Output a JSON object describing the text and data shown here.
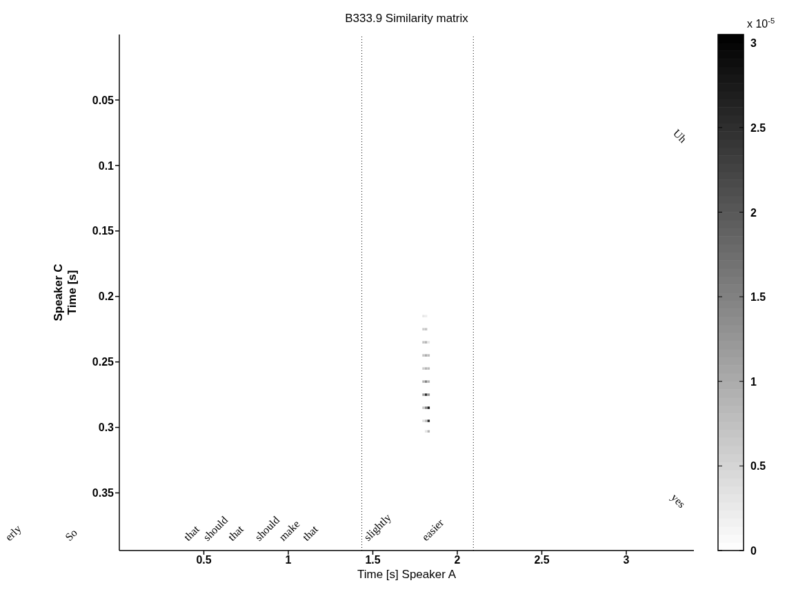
{
  "chart_data": {
    "type": "scatter",
    "title": "B333.9 Similarity matrix",
    "xlabel": "Time [s] Speaker A",
    "ylabel": "Speaker C\nTime [s]",
    "clabel": "x 10$^{-5}$",
    "xlim": [
      0,
      3.4
    ],
    "xticks": [
      0.5,
      1,
      1.5,
      2,
      2.5,
      3
    ],
    "ylim": [
      0.394,
      0
    ],
    "yticks": [
      0.05,
      0.1,
      0.15,
      0.2,
      0.25,
      0.3,
      0.35
    ],
    "clim": [
      0,
      3.05
    ],
    "cticks": [
      0,
      0.5,
      1,
      1.5,
      2,
      2.5,
      3
    ],
    "marker": "square",
    "x": [
      1.8,
      1.8,
      1.8,
      1.8,
      1.8,
      1.8,
      1.8,
      1.8,
      1.8,
      1.815,
      1.815,
      1.815,
      1.815,
      1.815,
      1.815,
      1.815,
      1.815,
      1.815,
      1.815,
      1.83,
      1.83,
      1.83,
      1.83,
      1.83,
      1.83,
      1.83,
      1.83
    ],
    "values": [
      0.215,
      0.225,
      0.235,
      0.245,
      0.255,
      0.265,
      0.275,
      0.285,
      0.295,
      0.215,
      0.225,
      0.235,
      0.245,
      0.255,
      0.265,
      0.275,
      0.285,
      0.295,
      0.303,
      0.235,
      0.245,
      0.255,
      0.265,
      0.275,
      0.285,
      0.295,
      0.303
    ],
    "cvalues": [
      0.3,
      0.6,
      0.7,
      0.7,
      0.6,
      0.9,
      1.2,
      0.7,
      0.4,
      0.2,
      0.7,
      0.9,
      1,
      0.9,
      1.5,
      2.5,
      1.5,
      0.8,
      0.3,
      0.3,
      0.8,
      0.8,
      0.9,
      1.3,
      2.8,
      2.6,
      0.9
    ],
    "ref_lines": [
      {
        "axis": "x",
        "value": 1.435,
        "line_style": "dotted"
      },
      {
        "axis": "x",
        "value": 2.095,
        "line_style": "dotted"
      }
    ],
    "annotations": [
      "erly",
      "So",
      "that",
      "should",
      "that",
      "should",
      "make",
      "that",
      "slightly",
      "easier",
      "Uh",
      "yes"
    ]
  }
}
